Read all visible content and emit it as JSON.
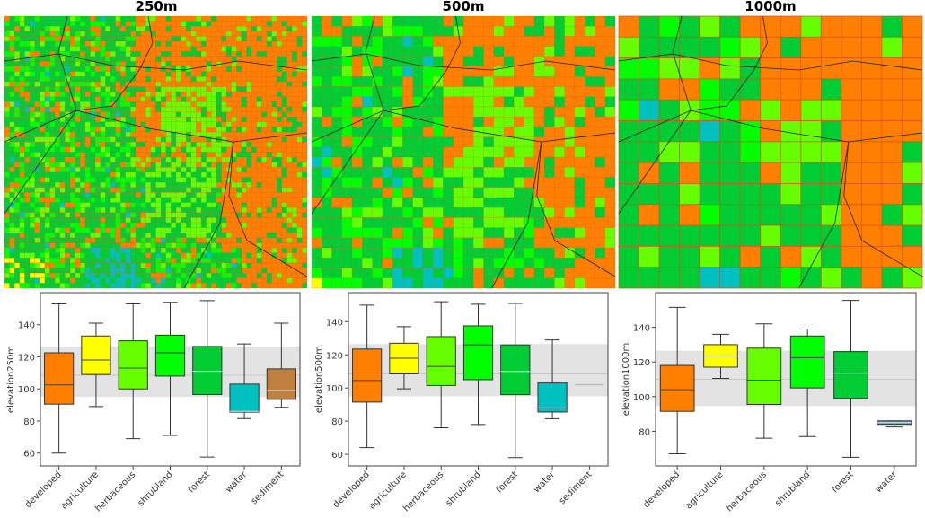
{
  "colors": {
    "developed": "#ff7f00",
    "agriculture": "#ffff00",
    "herbaceous": "#66ff00",
    "shrubland": "#00ff00",
    "forest": "#00cc33",
    "water": "#00c0c0",
    "sediment": "#c08040",
    "band": "#e3e3e3"
  },
  "panels": [
    {
      "title": "250m"
    },
    {
      "title": "500m"
    },
    {
      "title": "1000m"
    }
  ],
  "chart_data": [
    {
      "type": "box",
      "title": "250m",
      "ylabel": "elevation250m",
      "ylim": [
        52,
        160
      ],
      "yticks": [
        60,
        80,
        100,
        120,
        140
      ],
      "band": {
        "low": 95,
        "high": 126.5,
        "line": 108.5
      },
      "categories": [
        "developed",
        "agriculture",
        "herbaceous",
        "shrubland",
        "forest",
        "water",
        "sediment"
      ],
      "boxes": [
        {
          "q1": 90.5,
          "median": 102.5,
          "q3": 122.5,
          "whislo": 60,
          "whishi": 153
        },
        {
          "q1": 109,
          "median": 118,
          "q3": 133,
          "whislo": 89,
          "whishi": 141
        },
        {
          "q1": 100,
          "median": 113,
          "q3": 130,
          "whislo": 69,
          "whishi": 153
        },
        {
          "q1": 108,
          "median": 122.5,
          "q3": 133.5,
          "whislo": 71,
          "whishi": 154
        },
        {
          "q1": 96.5,
          "median": 111,
          "q3": 126.5,
          "whislo": 57.5,
          "whishi": 155
        },
        {
          "q1": 85.5,
          "median": 86,
          "q3": 103,
          "whislo": 81.5,
          "whishi": 128
        },
        {
          "q1": 93.5,
          "median": 99,
          "q3": 112.5,
          "whislo": 88.5,
          "whishi": 141
        }
      ]
    },
    {
      "type": "box",
      "title": "500m",
      "ylabel": "elevation500m",
      "ylim": [
        53,
        157.5
      ],
      "yticks": [
        60,
        80,
        100,
        120,
        140
      ],
      "band": {
        "low": 95,
        "high": 126.5,
        "line": 108.5
      },
      "categories": [
        "developed",
        "agriculture",
        "herbaceous",
        "shrubland",
        "forest",
        "water",
        "sediment"
      ],
      "boxes": [
        {
          "q1": 91.5,
          "median": 104.5,
          "q3": 123.5,
          "whislo": 64,
          "whishi": 150
        },
        {
          "q1": 108.5,
          "median": 118,
          "q3": 127,
          "whislo": 99.5,
          "whishi": 137
        },
        {
          "q1": 101.5,
          "median": 113,
          "q3": 131,
          "whislo": 76,
          "whishi": 152
        },
        {
          "q1": 105,
          "median": 126,
          "q3": 137.5,
          "whislo": 78,
          "whishi": 150.5
        },
        {
          "q1": 96,
          "median": 110,
          "q3": 126,
          "whislo": 58,
          "whishi": 151
        },
        {
          "q1": 85.5,
          "median": 88,
          "q3": 103,
          "whislo": 81.5,
          "whishi": 129
        },
        {
          "q1": 102,
          "median": 102,
          "q3": 102,
          "whislo": 102,
          "whishi": 102
        }
      ]
    },
    {
      "type": "box",
      "title": "1000m",
      "ylabel": "elevation1000m",
      "ylim": [
        60,
        160
      ],
      "yticks": [
        80,
        100,
        120,
        140
      ],
      "band": {
        "low": 94.5,
        "high": 126.5,
        "line": 110
      },
      "categories": [
        "developed",
        "agriculture",
        "herbaceous",
        "shrubland",
        "forest",
        "water"
      ],
      "boxes": [
        {
          "q1": 91.5,
          "median": 104,
          "q3": 118,
          "whislo": 67,
          "whishi": 151.5
        },
        {
          "q1": 117,
          "median": 123.5,
          "q3": 130,
          "whislo": 110.5,
          "whishi": 136
        },
        {
          "q1": 95.5,
          "median": 109.5,
          "q3": 128,
          "whislo": 76,
          "whishi": 142
        },
        {
          "q1": 105,
          "median": 122.5,
          "q3": 135,
          "whislo": 77,
          "whishi": 139
        },
        {
          "q1": 99,
          "median": 113.5,
          "q3": 126,
          "whislo": 65,
          "whishi": 155.5
        },
        {
          "q1": 84,
          "median": 85,
          "q3": 86,
          "whislo": 82.5,
          "whishi": 86
        }
      ]
    }
  ]
}
